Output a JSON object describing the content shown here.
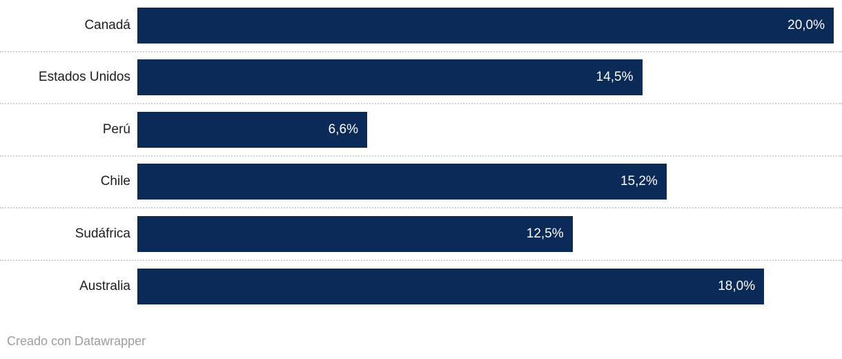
{
  "chart_data": {
    "type": "bar",
    "orientation": "horizontal",
    "categories": [
      "Canadá",
      "Estados Unidos",
      "Perú",
      "Chile",
      "Sudáfrica",
      "Australia"
    ],
    "values": [
      20.0,
      14.5,
      6.6,
      15.2,
      12.5,
      18.0
    ],
    "value_labels": [
      "20,0%",
      "14,5%",
      "6,6%",
      "15,2%",
      "12,5%",
      "18,0%"
    ],
    "xlim": [
      0,
      20
    ],
    "bar_color": "#0c2a58",
    "label_color": "#1d1d1d",
    "value_label_color": "#ffffff",
    "separator_color": "#d0d0d0",
    "grid": false,
    "legend": false,
    "value_format": "percent-comma-decimal"
  },
  "footer": {
    "credit": "Creado con Datawrapper"
  }
}
